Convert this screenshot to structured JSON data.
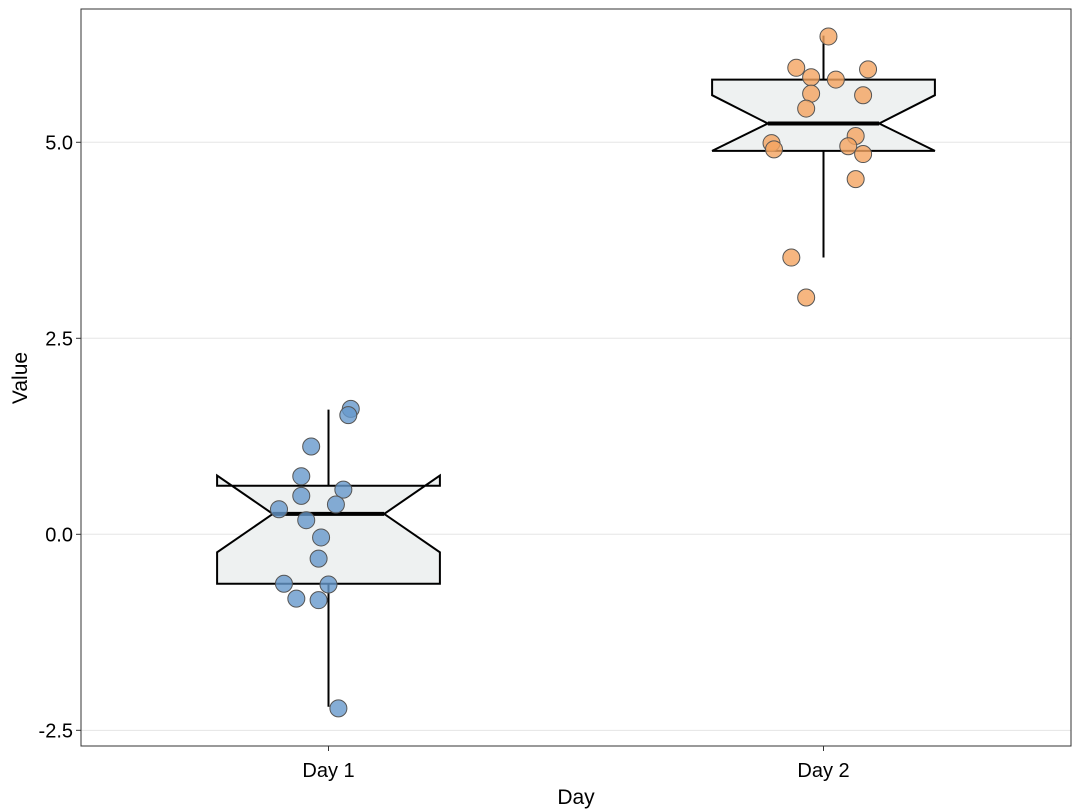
{
  "chart_data": {
    "type": "boxplot",
    "title": "",
    "xlabel": "Day",
    "ylabel": "Value",
    "categories": [
      "Day 1",
      "Day 2"
    ],
    "ylim": [
      -2.7,
      6.7
    ],
    "yticks": [
      -2.5,
      0.0,
      2.5,
      5.0
    ],
    "ytick_labels": [
      "-2.5",
      "0.0",
      "2.5",
      "5.0"
    ],
    "grid": "horizontal major",
    "notched": true,
    "colors": {
      "box_fill": "#eef1f1",
      "box_stroke": "#000000",
      "grid": "#e5e5e5",
      "series": [
        "#6699cc",
        "#f4a460"
      ]
    },
    "boxes": [
      {
        "category": "Day 1",
        "whisker_low": -2.2,
        "q1": -0.63,
        "median": 0.26,
        "q3": 0.62,
        "whisker_high": 1.59,
        "notch_low": -0.23,
        "notch_high": 0.75
      },
      {
        "category": "Day 2",
        "whisker_low": 3.53,
        "q1": 4.89,
        "median": 5.24,
        "q3": 5.8,
        "whisker_high": 6.36,
        "notch_low": 4.89,
        "notch_high": 5.6
      }
    ],
    "series": [
      {
        "category": "Day 1",
        "points": [
          {
            "x": 0.045,
            "y": 1.6
          },
          {
            "x": 0.04,
            "y": 1.52
          },
          {
            "x": -0.035,
            "y": 1.12
          },
          {
            "x": -0.055,
            "y": 0.74
          },
          {
            "x": 0.03,
            "y": 0.57
          },
          {
            "x": -0.055,
            "y": 0.49
          },
          {
            "x": 0.015,
            "y": 0.38
          },
          {
            "x": -0.1,
            "y": 0.32
          },
          {
            "x": -0.045,
            "y": 0.18
          },
          {
            "x": -0.015,
            "y": -0.04
          },
          {
            "x": -0.02,
            "y": -0.31
          },
          {
            "x": -0.09,
            "y": -0.63
          },
          {
            "x": 0.0,
            "y": -0.64
          },
          {
            "x": -0.065,
            "y": -0.82
          },
          {
            "x": -0.02,
            "y": -0.84
          },
          {
            "x": 0.02,
            "y": -2.22
          }
        ]
      },
      {
        "category": "Day 2",
        "points": [
          {
            "x": 0.01,
            "y": 6.35
          },
          {
            "x": -0.055,
            "y": 5.95
          },
          {
            "x": 0.09,
            "y": 5.93
          },
          {
            "x": -0.025,
            "y": 5.83
          },
          {
            "x": 0.025,
            "y": 5.8
          },
          {
            "x": -0.025,
            "y": 5.62
          },
          {
            "x": 0.08,
            "y": 5.6
          },
          {
            "x": -0.035,
            "y": 5.43
          },
          {
            "x": 0.065,
            "y": 5.08
          },
          {
            "x": -0.105,
            "y": 4.99
          },
          {
            "x": 0.05,
            "y": 4.95
          },
          {
            "x": -0.1,
            "y": 4.91
          },
          {
            "x": 0.08,
            "y": 4.85
          },
          {
            "x": 0.065,
            "y": 4.53
          },
          {
            "x": -0.065,
            "y": 3.53
          },
          {
            "x": -0.035,
            "y": 3.02
          }
        ]
      }
    ]
  }
}
